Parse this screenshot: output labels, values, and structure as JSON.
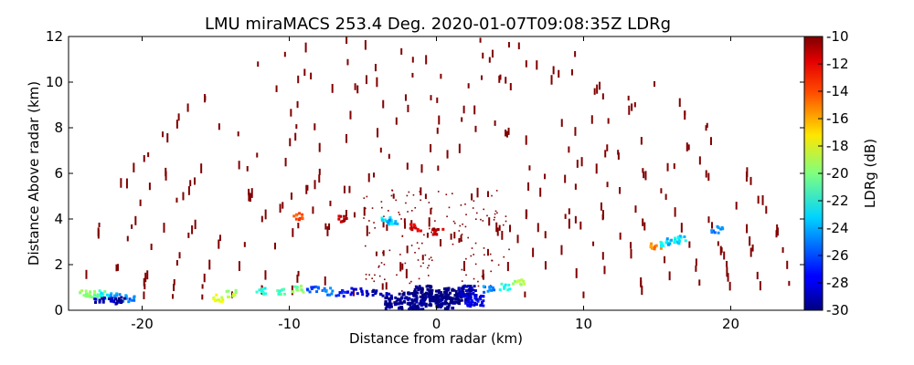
{
  "chart_data": {
    "type": "scatter",
    "title": "LMU miraMACS 253.4 Deg. 2020-01-07T09:08:35Z  LDRg",
    "xlabel": "Distance from radar (km)",
    "ylabel": "Distance Above radar  (km)",
    "xlim": [
      -25,
      25
    ],
    "ylim": [
      0,
      12
    ],
    "x_ticks": [
      "-20",
      "-10",
      "0",
      "10",
      "20"
    ],
    "y_ticks": [
      "0",
      "2",
      "4",
      "6",
      "8",
      "10",
      "12"
    ],
    "grid": false,
    "colorbar": {
      "label": "LDRg (dB)",
      "range": [
        -30,
        -10
      ],
      "ticks": [
        "-10",
        "-12",
        "-14",
        "-16",
        "-18",
        "-20",
        "-22",
        "-24",
        "-26",
        "-28",
        "-30"
      ],
      "colormap": "jet"
    },
    "points": [
      {
        "x": -24.0,
        "y": 0.7,
        "v": -19
      },
      {
        "x": -23.5,
        "y": 0.7,
        "v": -20
      },
      {
        "x": -23.0,
        "y": 0.7,
        "v": -21
      },
      {
        "x": -22.5,
        "y": 0.6,
        "v": -23
      },
      {
        "x": -22.0,
        "y": 0.6,
        "v": -24
      },
      {
        "x": -21.0,
        "y": 0.5,
        "v": -25
      },
      {
        "x": -23.0,
        "y": 0.4,
        "v": -29
      },
      {
        "x": -22.0,
        "y": 0.4,
        "v": -29
      },
      {
        "x": -21.5,
        "y": 0.4,
        "v": -30
      },
      {
        "x": -15.0,
        "y": 0.5,
        "v": -18
      },
      {
        "x": -14.0,
        "y": 0.7,
        "v": -19
      },
      {
        "x": -12.0,
        "y": 0.8,
        "v": -22
      },
      {
        "x": -10.5,
        "y": 0.8,
        "v": -21
      },
      {
        "x": -9.5,
        "y": 0.9,
        "v": -20
      },
      {
        "x": -8.5,
        "y": 0.9,
        "v": -26
      },
      {
        "x": -7.5,
        "y": 0.8,
        "v": -25
      },
      {
        "x": -6.5,
        "y": 0.7,
        "v": -27
      },
      {
        "x": -5.5,
        "y": 0.8,
        "v": -28
      },
      {
        "x": -4.5,
        "y": 0.7,
        "v": -29
      },
      {
        "x": -3.5,
        "y": 0.6,
        "v": -29
      },
      {
        "x": -3.0,
        "y": 0.3,
        "v": -30
      },
      {
        "x": -2.0,
        "y": 0.5,
        "v": -30
      },
      {
        "x": -1.5,
        "y": 0.2,
        "v": -30
      },
      {
        "x": -1.0,
        "y": 0.8,
        "v": -30
      },
      {
        "x": -0.5,
        "y": 0.4,
        "v": -30
      },
      {
        "x": 0.0,
        "y": 0.6,
        "v": -30
      },
      {
        "x": 0.5,
        "y": 0.3,
        "v": -30
      },
      {
        "x": 1.0,
        "y": 0.7,
        "v": -30
      },
      {
        "x": 1.5,
        "y": 0.5,
        "v": -30
      },
      {
        "x": 2.0,
        "y": 0.8,
        "v": -29
      },
      {
        "x": 2.5,
        "y": 0.4,
        "v": -28
      },
      {
        "x": 3.5,
        "y": 0.9,
        "v": -25
      },
      {
        "x": 4.5,
        "y": 1.0,
        "v": -22
      },
      {
        "x": 5.5,
        "y": 1.2,
        "v": -19
      },
      {
        "x": -3.5,
        "y": 3.9,
        "v": -23
      },
      {
        "x": -3.0,
        "y": 3.8,
        "v": -24
      },
      {
        "x": -1.5,
        "y": 3.6,
        "v": -12
      },
      {
        "x": 0.0,
        "y": 3.4,
        "v": -11
      },
      {
        "x": -9.5,
        "y": 4.1,
        "v": -14
      },
      {
        "x": -6.5,
        "y": 4.0,
        "v": -11
      },
      {
        "x": 14.8,
        "y": 2.8,
        "v": -15
      },
      {
        "x": 15.5,
        "y": 2.9,
        "v": -22
      },
      {
        "x": 16.0,
        "y": 3.0,
        "v": -24
      },
      {
        "x": 16.5,
        "y": 3.1,
        "v": -23
      },
      {
        "x": 19.0,
        "y": 3.5,
        "v": -25
      }
    ],
    "clutter_value": -10
  }
}
